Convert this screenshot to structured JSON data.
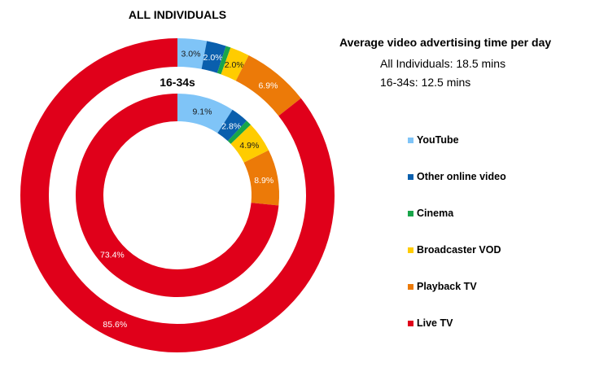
{
  "outer_title": "ALL INDIVIDUALS",
  "inner_title": "16-34s",
  "info": {
    "title": "Average video advertising time per day",
    "lines": [
      "All Individuals: 18.5 mins",
      "16-34s: 12.5 mins"
    ]
  },
  "colors": {
    "YouTube": "#7fc4f7",
    "Other online video": "#0a5fad",
    "Cinema": "#19a54a",
    "Broadcaster VOD": "#ffcc00",
    "Playback TV": "#ec7a08",
    "Live TV": "#e0001a"
  },
  "label_colors": {
    "YouTube": "#1a1a1a",
    "Other online video": "#ffffff",
    "Cinema": "#ffffff",
    "Broadcaster VOD": "#1a1a1a",
    "Playback TV": "#ffffff",
    "Live TV": "#ffffff"
  },
  "legend": [
    "YouTube",
    "Other online video",
    "Cinema",
    "Broadcaster VOD",
    "Playback TV",
    "Live TV"
  ],
  "chart_data": {
    "type": "pie",
    "subtype": "nested-donut",
    "title": "Average video advertising time per day",
    "categories": [
      "YouTube",
      "Other online video",
      "Cinema",
      "Broadcaster VOD",
      "Playback TV",
      "Live TV"
    ],
    "series": [
      {
        "name": "ALL INDIVIDUALS",
        "ring": "outer",
        "total_mins": 18.5,
        "values": [
          3.0,
          2.0,
          0.5,
          2.0,
          6.9,
          85.6
        ],
        "labels": [
          "3.0%",
          "2.0%",
          "",
          "2.0%",
          "6.9%",
          "85.6%"
        ]
      },
      {
        "name": "16-34s",
        "ring": "inner",
        "total_mins": 12.5,
        "values": [
          9.1,
          2.8,
          0.9,
          4.9,
          8.9,
          73.4
        ],
        "labels": [
          "9.1%",
          "2.8%",
          "",
          "4.9%",
          "8.9%",
          "73.4%"
        ]
      }
    ],
    "legend_position": "right"
  }
}
